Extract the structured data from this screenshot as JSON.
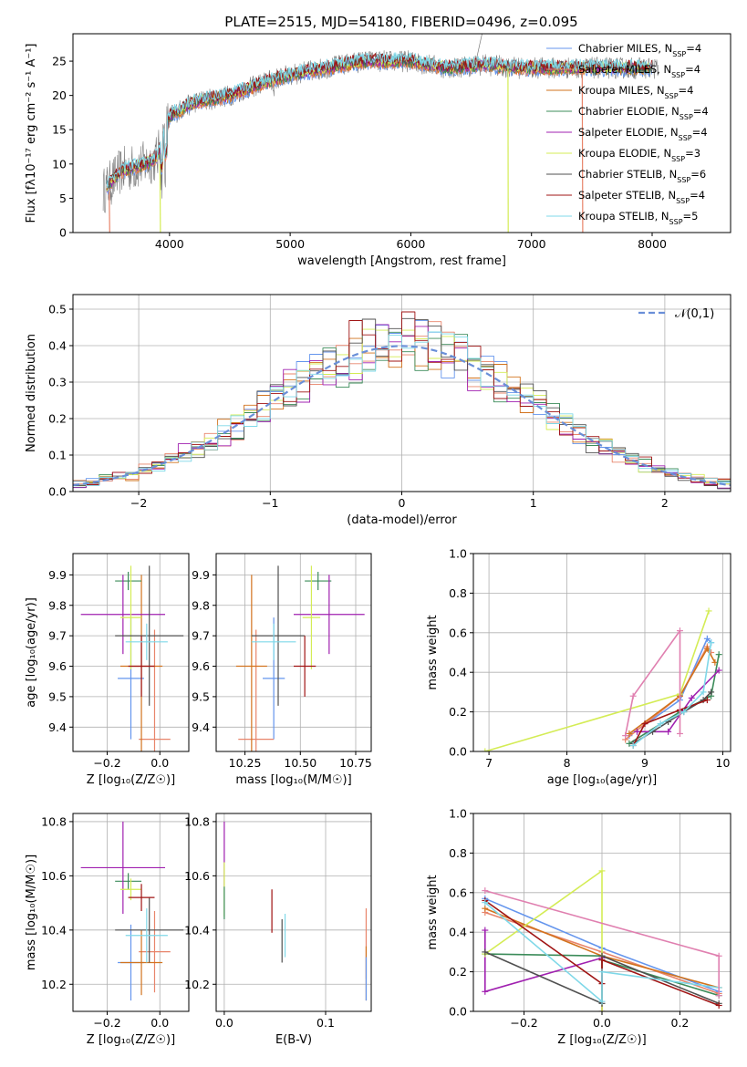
{
  "figure_title": "PLATE=2515, MJD=54180, FIBERID=0496, z=0.095",
  "models": [
    {
      "key": "chabrier_miles",
      "name": "Chabrier MILES, N",
      "nssp": "=4",
      "color": "#6495ed"
    },
    {
      "key": "salpeter_miles",
      "name": "Salpeter MILES, N",
      "nssp": "=4",
      "color": "#e8846a"
    },
    {
      "key": "kroupa_miles",
      "name": "Kroupa MILES, N",
      "nssp": "=4",
      "color": "#d2731e"
    },
    {
      "key": "chabrier_elodie",
      "name": "Chabrier ELODIE, N",
      "nssp": "=4",
      "color": "#3c8c5a"
    },
    {
      "key": "salpeter_elodie",
      "name": "Salpeter ELODIE, N",
      "nssp": "=4",
      "color": "#a020b0"
    },
    {
      "key": "kroupa_elodie",
      "name": "Kroupa ELODIE, N",
      "nssp": "=3",
      "color": "#d4ec55"
    },
    {
      "key": "chabrier_stelib",
      "name": "Chabrier STELIB, N",
      "nssp": "=6",
      "color": "#505050"
    },
    {
      "key": "salpeter_stelib",
      "name": "Salpeter STELIB, N",
      "nssp": "=4",
      "color": "#a01414"
    },
    {
      "key": "kroupa_stelib",
      "name": "Kroupa STELIB, N",
      "nssp": "=5",
      "color": "#7fd8e8"
    }
  ],
  "nssp_subscript": "SSP",
  "chart_data": [
    {
      "id": "spectrum",
      "type": "line",
      "xlabel": "wavelength [Angstrom, rest frame]",
      "ylabel": "Flux [fλ10⁻¹⁷ erg cm⁻² s⁻¹ A⁻¹]",
      "xlim": [
        3200,
        8650
      ],
      "ylim": [
        0,
        29
      ],
      "xticks": [
        4000,
        5000,
        6000,
        7000,
        8000
      ],
      "yticks": [
        0,
        5,
        10,
        15,
        20,
        25
      ],
      "continuum_x": [
        3450,
        3600,
        3800,
        3900,
        3950,
        4000,
        4200,
        4500,
        4800,
        5000,
        5300,
        5600,
        6000,
        6300,
        6600,
        6900,
        7200,
        7450
      ],
      "continuum_y": [
        6,
        9,
        10,
        11,
        14,
        17,
        19,
        20,
        22,
        23,
        24,
        25,
        25,
        24,
        24.5,
        24,
        24,
        24
      ],
      "legend_position": "upper right"
    },
    {
      "id": "residuals",
      "type": "histogram",
      "xlabel": "(data-model)/error",
      "ylabel": "Normed distribution",
      "xlim": [
        -2.5,
        2.5
      ],
      "ylim": [
        0,
        0.54
      ],
      "xticks": [
        -2,
        -1,
        0,
        1,
        2
      ],
      "yticks": [
        0,
        0.1,
        0.2,
        0.3,
        0.4,
        0.5
      ],
      "reference_curve": {
        "label": "𝒩(0,1)",
        "mean": 0,
        "sigma": 1
      },
      "legend_position": "upper right"
    },
    {
      "id": "age_vs_Z",
      "type": "errorbar",
      "xlabel": "Z [log₁₀(Z/Z☉)]",
      "ylabel": "age  [log₁₀(age/yr)]",
      "xlim": [
        -0.33,
        0.11
      ],
      "ylim": [
        9.32,
        9.97
      ],
      "xticks": [
        -0.2,
        0.0
      ],
      "yticks": [
        9.4,
        9.5,
        9.6,
        9.7,
        9.8,
        9.9
      ],
      "points": [
        {
          "model": "chabrier_miles",
          "x": -0.11,
          "xerr": 0.05,
          "y": 9.56,
          "yerr": 0.2
        },
        {
          "model": "salpeter_miles",
          "x": -0.02,
          "xerr": 0.06,
          "y": 9.36,
          "yerr": 0.36
        },
        {
          "model": "kroupa_miles",
          "x": -0.07,
          "xerr": 0.08,
          "y": 9.6,
          "yerr": 0.3
        },
        {
          "model": "chabrier_elodie",
          "x": -0.12,
          "xerr": 0.05,
          "y": 9.88,
          "yerr": 0.03
        },
        {
          "model": "salpeter_elodie",
          "x": -0.14,
          "xerr": 0.16,
          "y": 9.77,
          "yerr": 0.13
        },
        {
          "model": "kroupa_elodie",
          "x": -0.11,
          "xerr": 0.04,
          "y": 9.76,
          "yerr": 0.17
        },
        {
          "model": "chabrier_stelib",
          "x": -0.04,
          "xerr": 0.13,
          "y": 9.7,
          "yerr": 0.23
        },
        {
          "model": "salpeter_stelib",
          "x": -0.07,
          "xerr": 0.05,
          "y": 9.6,
          "yerr": 0.1
        },
        {
          "model": "kroupa_stelib",
          "x": -0.05,
          "xerr": 0.08,
          "y": 9.68,
          "yerr": 0.06
        }
      ]
    },
    {
      "id": "age_vs_mass",
      "type": "errorbar",
      "xlabel": "mass [log₁₀(M/M☉)]",
      "ylabel": "",
      "xlim": [
        10.12,
        10.82
      ],
      "ylim": [
        9.32,
        9.97
      ],
      "xticks": [
        10.25,
        10.5,
        10.75
      ],
      "yticks": [
        9.4,
        9.5,
        9.6,
        9.7,
        9.8,
        9.9
      ],
      "points": [
        {
          "model": "chabrier_miles",
          "x": 10.38,
          "xerr": 0.05,
          "y": 9.56,
          "yerr": 0.2
        },
        {
          "model": "salpeter_miles",
          "x": 10.3,
          "xerr": 0.08,
          "y": 9.36,
          "yerr": 0.36
        },
        {
          "model": "kroupa_miles",
          "x": 10.28,
          "xerr": 0.07,
          "y": 9.6,
          "yerr": 0.3
        },
        {
          "model": "chabrier_elodie",
          "x": 10.58,
          "xerr": 0.06,
          "y": 9.88,
          "yerr": 0.03
        },
        {
          "model": "salpeter_elodie",
          "x": 10.63,
          "xerr": 0.16,
          "y": 9.77,
          "yerr": 0.13
        },
        {
          "model": "kroupa_elodie",
          "x": 10.55,
          "xerr": 0.04,
          "y": 9.76,
          "yerr": 0.17
        },
        {
          "model": "chabrier_stelib",
          "x": 10.4,
          "xerr": 0.12,
          "y": 9.7,
          "yerr": 0.23
        },
        {
          "model": "salpeter_stelib",
          "x": 10.52,
          "xerr": 0.05,
          "y": 9.6,
          "yerr": 0.1
        },
        {
          "model": "kroupa_stelib",
          "x": 10.38,
          "xerr": 0.1,
          "y": 9.68,
          "yerr": 0.06
        }
      ]
    },
    {
      "id": "weight_vs_age",
      "type": "line",
      "xlabel": "age  [log₁₀(age/yr)]",
      "ylabel": "mass weight",
      "xlim": [
        6.8,
        10.1
      ],
      "ylim": [
        0,
        1
      ],
      "xticks": [
        7,
        8,
        9,
        10
      ],
      "yticks": [
        0,
        0.2,
        0.4,
        0.6,
        0.8,
        1.0
      ],
      "series": [
        {
          "model": "chabrier_miles",
          "x": [
            8.8,
            9.45,
            9.8,
            9.85
          ],
          "y": [
            0.08,
            0.26,
            0.57,
            0.55
          ]
        },
        {
          "model": "salpeter_miles",
          "x": [
            8.75,
            9.45,
            9.8,
            9.85
          ],
          "y": [
            0.06,
            0.28,
            0.53,
            0.5
          ]
        },
        {
          "model": "kroupa_miles",
          "x": [
            8.8,
            9.45,
            9.8,
            9.9
          ],
          "y": [
            0.09,
            0.28,
            0.52,
            0.45
          ]
        },
        {
          "model": "chabrier_elodie",
          "x": [
            8.8,
            9.45,
            9.85,
            9.95
          ],
          "y": [
            0.04,
            0.2,
            0.28,
            0.49
          ]
        },
        {
          "model": "salpeter_elodie",
          "x": [
            8.9,
            9.3,
            9.6,
            9.95
          ],
          "y": [
            0.1,
            0.1,
            0.27,
            0.41
          ]
        },
        {
          "model": "kroupa_elodie",
          "x": [
            6.95,
            9.45,
            9.82
          ],
          "y": [
            0.0,
            0.29,
            0.71
          ]
        },
        {
          "model": "chabrier_stelib",
          "x": [
            8.85,
            9.1,
            9.3,
            9.5,
            9.75,
            9.85
          ],
          "y": [
            0.04,
            0.1,
            0.15,
            0.2,
            0.26,
            0.3
          ]
        },
        {
          "model": "salpeter_stelib",
          "x": [
            8.85,
            9.0,
            9.45,
            9.8
          ],
          "y": [
            0.03,
            0.14,
            0.21,
            0.26
          ]
        },
        {
          "model": "kroupa_stelib",
          "x": [
            8.85,
            9.2,
            9.5,
            9.75,
            9.85
          ],
          "y": [
            0.03,
            0.14,
            0.2,
            0.3,
            0.55
          ]
        },
        {
          "model": "salpeter_miles_extra",
          "color": "#e080b0",
          "x": [
            8.75,
            8.85,
            9.45,
            9.45
          ],
          "y": [
            0.08,
            0.28,
            0.61,
            0.09
          ]
        }
      ]
    },
    {
      "id": "mass_vs_Z",
      "type": "errorbar",
      "xlabel": "Z [log₁₀(Z/Z☉)]",
      "ylabel": "mass [log₁₀(M/M☉)]",
      "xlim": [
        -0.33,
        0.11
      ],
      "ylim": [
        10.1,
        10.83
      ],
      "xticks": [
        -0.2,
        0.0
      ],
      "yticks": [
        10.2,
        10.4,
        10.6,
        10.8
      ],
      "points": [
        {
          "model": "chabrier_miles",
          "x": -0.11,
          "xerr": 0.05,
          "y": 10.28,
          "yerr": 0.14
        },
        {
          "model": "salpeter_miles",
          "x": -0.02,
          "xerr": 0.06,
          "y": 10.32,
          "yerr": 0.15
        },
        {
          "model": "kroupa_miles",
          "x": -0.07,
          "xerr": 0.08,
          "y": 10.28,
          "yerr": 0.12
        },
        {
          "model": "chabrier_elodie",
          "x": -0.12,
          "xerr": 0.05,
          "y": 10.58,
          "yerr": 0.03
        },
        {
          "model": "salpeter_elodie",
          "x": -0.14,
          "xerr": 0.16,
          "y": 10.63,
          "yerr": 0.17
        },
        {
          "model": "kroupa_elodie",
          "x": -0.11,
          "xerr": 0.04,
          "y": 10.55,
          "yerr": 0.04
        },
        {
          "model": "chabrier_stelib",
          "x": -0.04,
          "xerr": 0.13,
          "y": 10.4,
          "yerr": 0.12
        },
        {
          "model": "salpeter_stelib",
          "x": -0.07,
          "xerr": 0.05,
          "y": 10.52,
          "yerr": 0.05
        },
        {
          "model": "kroupa_stelib",
          "x": -0.05,
          "xerr": 0.08,
          "y": 10.38,
          "yerr": 0.1
        }
      ]
    },
    {
      "id": "mass_vs_ebv",
      "type": "errorbar",
      "xlabel": "E(B-V)",
      "ylabel": "",
      "xlim": [
        -0.008,
        0.145
      ],
      "ylim": [
        10.1,
        10.83
      ],
      "xticks": [
        0.0,
        0.1
      ],
      "yticks": [
        10.2,
        10.4,
        10.6,
        10.8
      ],
      "points": [
        {
          "model": "salpeter_elodie",
          "x": 0.0,
          "xerr": 0,
          "y": 10.68,
          "yerr": 0.12
        },
        {
          "model": "kroupa_elodie",
          "x": 0.0,
          "xerr": 0,
          "y": 10.55,
          "yerr": 0.1
        },
        {
          "model": "chabrier_elodie",
          "x": 0.0,
          "xerr": 0,
          "y": 10.5,
          "yerr": 0.06
        },
        {
          "model": "salpeter_stelib",
          "x": 0.047,
          "xerr": 0,
          "y": 10.47,
          "yerr": 0.08
        },
        {
          "model": "chabrier_stelib",
          "x": 0.057,
          "xerr": 0,
          "y": 10.36,
          "yerr": 0.08
        },
        {
          "model": "kroupa_stelib",
          "x": 0.06,
          "xerr": 0,
          "y": 10.38,
          "yerr": 0.08
        },
        {
          "model": "salpeter_miles",
          "x": 0.14,
          "xerr": 0,
          "y": 10.35,
          "yerr": 0.13
        },
        {
          "model": "kroupa_miles",
          "x": 0.14,
          "xerr": 0,
          "y": 10.24,
          "yerr": 0.1
        },
        {
          "model": "chabrier_miles",
          "x": 0.14,
          "xerr": 0,
          "y": 10.22,
          "yerr": 0.08
        }
      ]
    },
    {
      "id": "weight_vs_Z",
      "type": "line",
      "xlabel": "Z [log₁₀(Z/Z☉)]",
      "ylabel": "mass weight",
      "xlim": [
        -0.33,
        0.33
      ],
      "ylim": [
        0,
        1
      ],
      "xticks": [
        -0.2,
        0.0,
        0.2
      ],
      "yticks": [
        0,
        0.2,
        0.4,
        0.6,
        0.8,
        1.0
      ],
      "series": [
        {
          "model": "chabrier_miles",
          "x": [
            -0.3,
            0.0,
            0.3
          ],
          "y": [
            0.57,
            0.32,
            0.1
          ]
        },
        {
          "model": "salpeter_miles",
          "x": [
            -0.3,
            0.0,
            0.3
          ],
          "y": [
            0.5,
            0.3,
            0.09
          ]
        },
        {
          "model": "kroupa_miles",
          "x": [
            -0.3,
            0.0,
            0.3
          ],
          "y": [
            0.52,
            0.28,
            0.12
          ]
        },
        {
          "model": "chabrier_elodie",
          "x": [
            -0.3,
            0.0,
            0.0,
            0.3
          ],
          "y": [
            0.29,
            0.28,
            0.26,
            0.08
          ]
        },
        {
          "model": "salpeter_elodie",
          "x": [
            -0.3,
            -0.3,
            0.0,
            0.0
          ],
          "y": [
            0.41,
            0.1,
            0.27,
            0.0
          ]
        },
        {
          "model": "kroupa_elodie",
          "x": [
            -0.3,
            0.0,
            0.0
          ],
          "y": [
            0.29,
            0.71,
            0.0
          ]
        },
        {
          "model": "chabrier_stelib",
          "x": [
            -0.3,
            0.0,
            0.0,
            0.3
          ],
          "y": [
            0.3,
            0.04,
            0.28,
            0.04
          ]
        },
        {
          "model": "salpeter_stelib",
          "x": [
            -0.3,
            0.0,
            0.0,
            0.3
          ],
          "y": [
            0.56,
            0.14,
            0.26,
            0.03
          ]
        },
        {
          "model": "kroupa_stelib",
          "x": [
            -0.3,
            0.0,
            0.0,
            0.3
          ],
          "y": [
            0.55,
            0.05,
            0.2,
            0.12
          ]
        },
        {
          "model": "salpeter_miles_extra",
          "color": "#e080b0",
          "x": [
            -0.3,
            0.3,
            0.3
          ],
          "y": [
            0.61,
            0.28,
            0.08
          ]
        }
      ]
    }
  ]
}
